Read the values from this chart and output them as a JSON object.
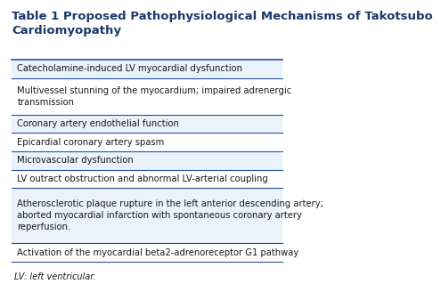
{
  "title_line1": "Table 1 Proposed Pathophysiological Mechanisms of Takotsubo",
  "title_line2": "Cardiomyopathy",
  "title_color": "#1a3a6b",
  "title_fontsize": 9.5,
  "rows": [
    "Catecholamine-induced LV myocardial dysfunction",
    "Multivessel stunning of the myocardium; impaired adrenergic\ntransmission",
    "Coronary artery endothelial function",
    "Epicardial coronary artery spasm",
    "Microvascular dysfunction",
    "LV outract obstruction and abnormal LV-arterial coupling",
    "Atherosclerotic plaque rupture in the left anterior descending artery;\naborted myocardial infarction with spontaneous coronary artery\nreperfusion.",
    "Activation of the myocardial beta2-adrenoreceptor G1 pathway"
  ],
  "footnote": "LV: left ventricular.",
  "bg_color": "#ffffff",
  "row_line_color": "#2a5298",
  "row_text_color": "#1a1a1a",
  "alt_row_color": "#eaf2fb",
  "normal_row_color": "#ffffff",
  "row_line_heights": [
    1,
    2,
    1,
    1,
    1,
    1,
    3,
    1
  ]
}
